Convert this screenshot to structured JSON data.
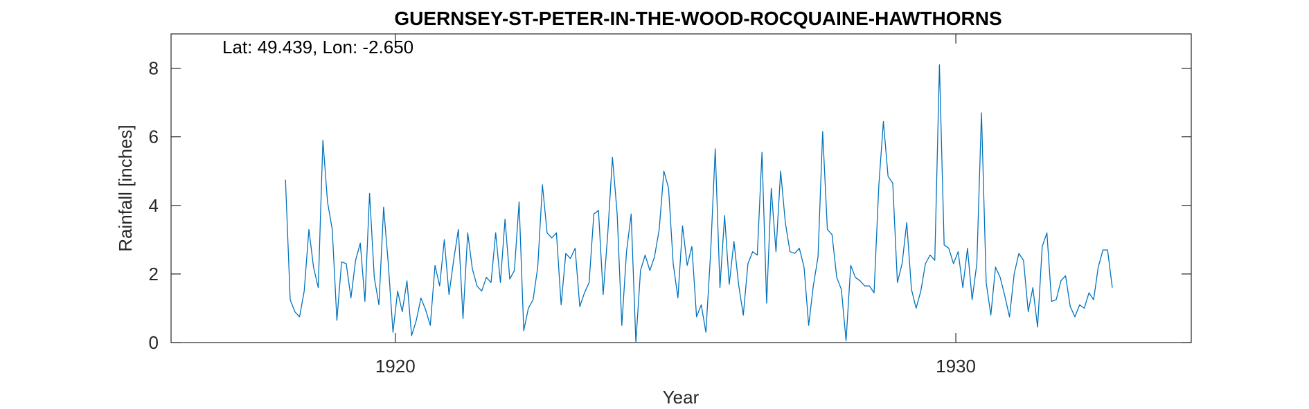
{
  "chart_data": {
    "type": "line",
    "title": "GUERNSEY-ST-PETER-IN-THE-WOOD-ROCQUAINE-HAWTHORNS",
    "annotation": "Lat: 49.439, Lon: -2.650",
    "xlabel": "Year",
    "ylabel": "Rainfall [inches]",
    "xlim": [
      1916.0,
      1934.2
    ],
    "ylim": [
      0,
      9
    ],
    "xticks": [
      1920,
      1930
    ],
    "xtick_labels": [
      "1920",
      "1930"
    ],
    "yticks": [
      0,
      2,
      4,
      6,
      8
    ],
    "ytick_labels": [
      "0",
      "2",
      "4",
      "6",
      "8"
    ],
    "grid": false,
    "line_color": "#0072BD",
    "series": [
      {
        "x_start": 1918.0417,
        "x_step": 0.08333,
        "values": [
          4.75,
          1.25,
          0.9,
          0.75,
          1.5,
          3.3,
          2.2,
          1.6,
          5.9,
          4.1,
          3.3,
          0.65,
          2.35,
          2.3,
          1.3,
          2.4,
          2.9,
          1.2,
          4.35,
          1.9,
          1.1,
          3.95,
          2.3,
          0.3,
          1.5,
          0.9,
          1.8,
          0.2,
          0.65,
          1.3,
          0.95,
          0.5,
          2.25,
          1.65,
          3.0,
          1.4,
          2.4,
          3.3,
          0.7,
          3.2,
          2.15,
          1.65,
          1.5,
          1.9,
          1.75,
          3.2,
          1.75,
          3.6,
          1.85,
          2.1,
          4.1,
          0.35,
          1.0,
          1.25,
          2.2,
          4.6,
          3.2,
          3.05,
          3.2,
          1.1,
          2.6,
          2.45,
          2.75,
          1.05,
          1.45,
          1.75,
          3.75,
          3.85,
          1.4,
          3.2,
          5.4,
          3.75,
          0.5,
          2.65,
          3.75,
          0.0,
          2.1,
          2.55,
          2.1,
          2.5,
          3.3,
          5.0,
          4.5,
          2.3,
          1.3,
          3.4,
          2.25,
          2.8,
          0.75,
          1.1,
          0.3,
          2.6,
          5.65,
          1.6,
          3.7,
          1.7,
          2.95,
          1.7,
          0.8,
          2.3,
          2.65,
          2.55,
          5.55,
          1.15,
          4.5,
          2.65,
          5.0,
          3.5,
          2.65,
          2.6,
          2.75,
          2.2,
          0.5,
          1.65,
          2.5,
          6.15,
          3.3,
          3.15,
          1.9,
          1.55,
          0.05,
          2.25,
          1.9,
          1.8,
          1.65,
          1.65,
          1.45,
          4.55,
          6.45,
          4.85,
          4.65,
          1.75,
          2.3,
          3.5,
          1.55,
          1.0,
          1.5,
          2.3,
          2.55,
          2.4,
          8.1,
          2.85,
          2.75,
          2.3,
          2.65,
          1.6,
          2.75,
          1.25,
          2.3,
          6.7,
          1.75,
          0.8,
          2.2,
          1.9,
          1.35,
          0.75,
          2.0,
          2.6,
          2.4,
          0.9,
          1.6,
          0.45,
          2.8,
          3.2,
          1.2,
          1.25,
          1.8,
          1.95,
          1.05,
          0.75,
          1.1,
          1.0,
          1.45,
          1.25,
          2.2,
          2.7,
          2.7,
          1.6
        ]
      }
    ]
  }
}
